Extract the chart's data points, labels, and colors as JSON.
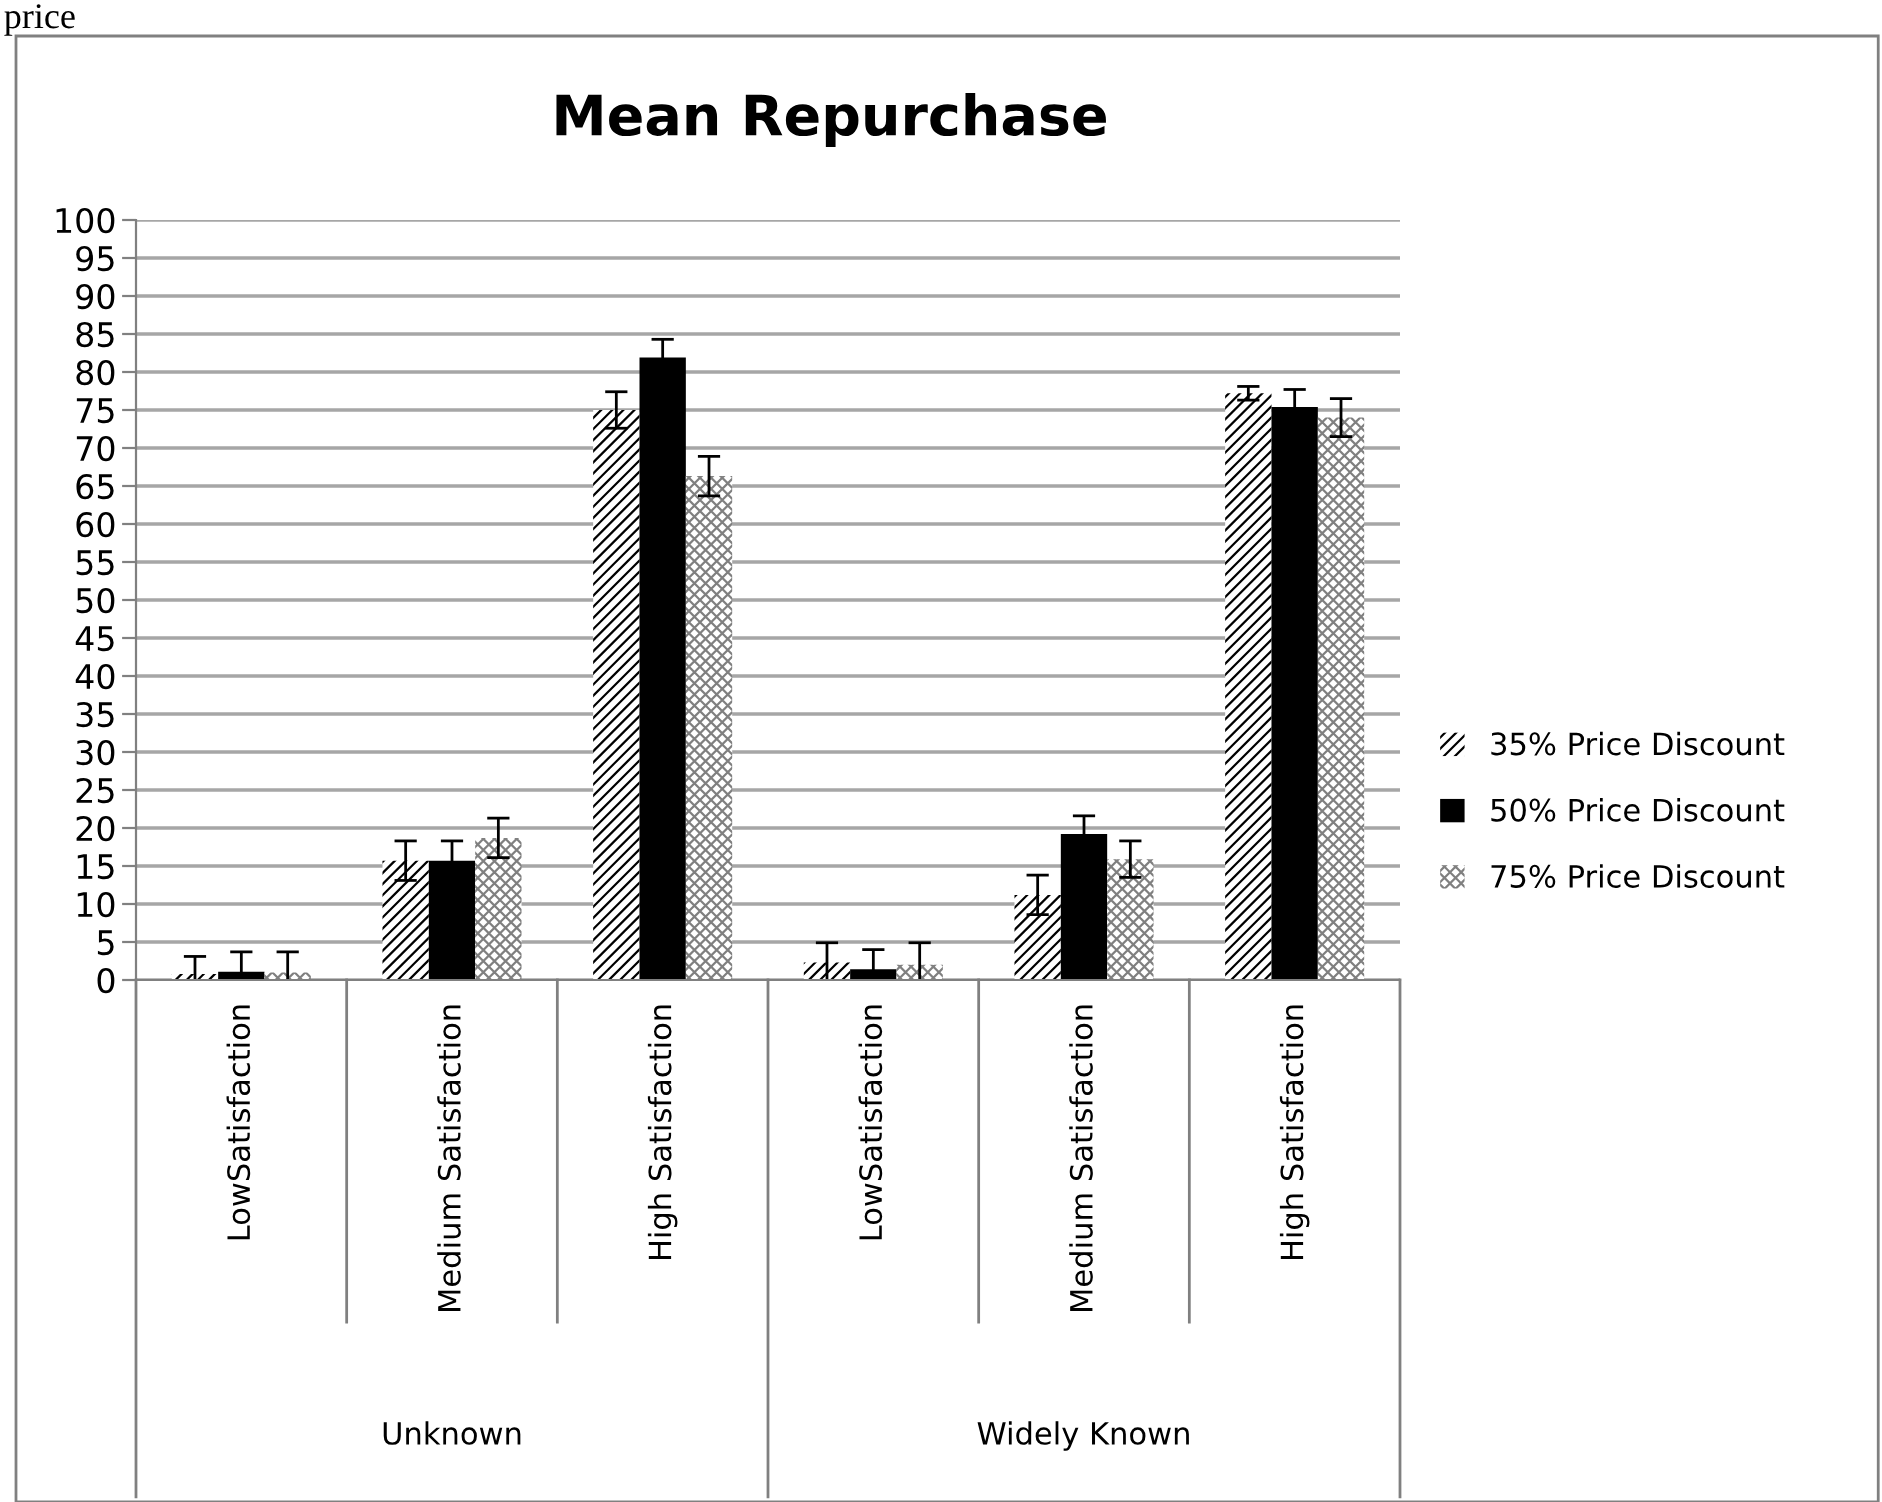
{
  "chart_data": {
    "type": "bar",
    "title": "Mean Repurchase",
    "categories": [
      "LowSatisfaction",
      "Medium Satisfaction",
      "High Satisfaction",
      "LowSatisfaction",
      "Medium Satisfaction",
      "High Satisfaction"
    ],
    "series": [
      {
        "name": "35% Price Discount",
        "color": "#000000",
        "values": [
          0.8,
          15.7,
          75.0,
          2.3,
          11.2,
          77.2
        ],
        "errors": [
          2.3,
          2.6,
          2.4,
          2.6,
          2.6,
          0.9
        ]
      },
      {
        "name": "50% Price Discount",
        "color": "#000000",
        "values": [
          1.1,
          15.7,
          81.9,
          1.4,
          19.2,
          75.4
        ],
        "errors": [
          2.6,
          2.6,
          2.4,
          2.6,
          2.4,
          2.3
        ]
      },
      {
        "name": "75% Price Discount",
        "color": "#808080",
        "values": [
          1.0,
          18.7,
          66.3,
          2.0,
          15.9,
          74.0
        ],
        "errors": [
          2.7,
          2.6,
          2.6,
          2.9,
          2.4,
          2.5
        ]
      }
    ],
    "ylim": [
      0,
      100
    ],
    "yticks": [
      0,
      5,
      10,
      15,
      20,
      25,
      30,
      35,
      40,
      45,
      50,
      55,
      60,
      65,
      70,
      75,
      80,
      85,
      90,
      95,
      100
    ],
    "grid": "y",
    "legend": "right",
    "annotations": [
      "Unknown",
      "Widely Known",
      "price"
    ]
  }
}
